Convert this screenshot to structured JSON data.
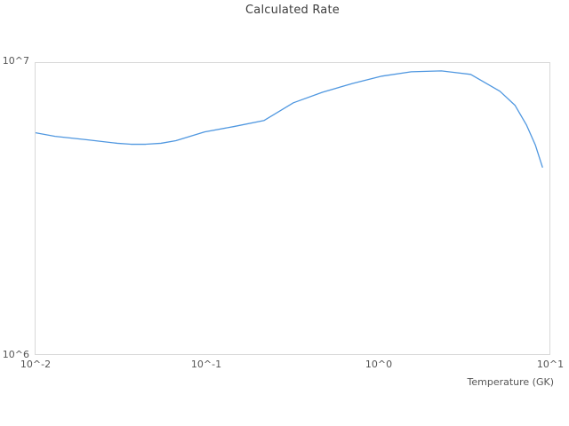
{
  "chart": {
    "title": "Calculated Rate",
    "x_axis": {
      "label": "Temperature (GK)",
      "ticks": [
        "10^-2",
        "10^-1",
        "10^0",
        "10^1"
      ]
    },
    "y_axis": {
      "ticks": [
        "10^6",
        "10^7"
      ]
    },
    "colors": {
      "line": "#4f97e0",
      "plot_border": "#d9d9d9",
      "tick_text": "#555555",
      "title_text": "#3d3d3d",
      "background": "#ffffff"
    }
  },
  "chart_data": {
    "type": "line",
    "title": "Calculated Rate",
    "xlabel": "Temperature (GK)",
    "ylabel": "",
    "x_scale": "log",
    "y_scale": "log",
    "xlim": [
      0.01,
      10
    ],
    "ylim": [
      1000000,
      10000000
    ],
    "grid": false,
    "legend": "none",
    "series": [
      {
        "name": "Calculated Rate",
        "x": [
          0.01,
          0.013,
          0.02,
          0.03,
          0.036,
          0.044,
          0.054,
          0.066,
          0.097,
          0.144,
          0.216,
          0.32,
          0.474,
          0.711,
          1.05,
          1.56,
          2.34,
          3.47,
          5.14,
          6.29,
          7.34,
          8.28,
          9.1
        ],
        "y": [
          5760000,
          5600000,
          5450000,
          5300000,
          5260000,
          5260000,
          5300000,
          5410000,
          5800000,
          6050000,
          6350000,
          7300000,
          7940000,
          8510000,
          9010000,
          9330000,
          9400000,
          9140000,
          8000000,
          7160000,
          6130000,
          5220000,
          4390000
        ]
      }
    ]
  }
}
